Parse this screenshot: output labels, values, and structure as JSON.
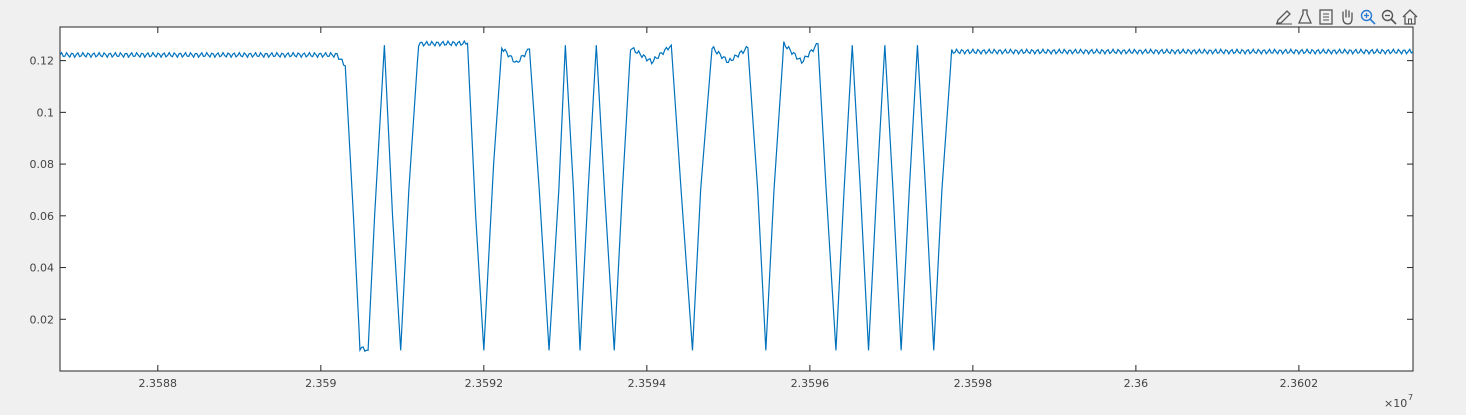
{
  "toolbar": {
    "buttons": [
      {
        "name": "edit-plot-icon"
      },
      {
        "name": "insert-legend-icon"
      },
      {
        "name": "brush-data-icon"
      },
      {
        "name": "pan-icon"
      },
      {
        "name": "zoom-in-icon"
      },
      {
        "name": "zoom-out-icon"
      },
      {
        "name": "home-icon"
      }
    ]
  },
  "chart_data": {
    "type": "line",
    "title": "",
    "xlabel": "",
    "ylabel": "",
    "xlim": [
      23586800,
      23603400
    ],
    "ylim": [
      0,
      0.133
    ],
    "x_exponent_label": "×10",
    "x_exponent_power": "7",
    "x_ticks": [
      23588000,
      23590000,
      23592000,
      23594000,
      23596000,
      23598000,
      23600000,
      23602000
    ],
    "x_tick_labels": [
      "2.3588",
      "2.359",
      "2.3592",
      "2.3594",
      "2.3596",
      "2.3598",
      "2.36",
      "2.3602"
    ],
    "y_ticks": [
      0.02,
      0.04,
      0.06,
      0.08,
      0.1,
      0.12
    ],
    "y_tick_labels": [
      "0.02",
      "0.04",
      "0.06",
      "0.08",
      "0.1",
      "0.12"
    ],
    "grid": false,
    "series_color": "#0072bd",
    "series": [
      {
        "points": [
          [
            23586800,
            0.1222
          ],
          [
            23590200,
            0.1222
          ],
          [
            23590300,
            0.118
          ],
          [
            23590400,
            0.06
          ],
          [
            23590480,
            0.009
          ],
          [
            23590580,
            0.008
          ],
          [
            23590660,
            0.06
          ],
          [
            23590780,
            0.126
          ],
          [
            23590880,
            0.06
          ],
          [
            23590980,
            0.008
          ],
          [
            23591080,
            0.07
          ],
          [
            23591200,
            0.1265
          ],
          [
            23591800,
            0.1267
          ],
          [
            23591900,
            0.06
          ],
          [
            23592000,
            0.008
          ],
          [
            23592120,
            0.08
          ],
          [
            23592220,
            0.125
          ],
          [
            23592400,
            0.119
          ],
          [
            23592560,
            0.1245
          ],
          [
            23592680,
            0.07
          ],
          [
            23592800,
            0.008
          ],
          [
            23592920,
            0.07
          ],
          [
            23593000,
            0.126
          ],
          [
            23593100,
            0.07
          ],
          [
            23593180,
            0.008
          ],
          [
            23593280,
            0.07
          ],
          [
            23593380,
            0.126
          ],
          [
            23593480,
            0.07
          ],
          [
            23593600,
            0.008
          ],
          [
            23593700,
            0.07
          ],
          [
            23593800,
            0.125
          ],
          [
            23594060,
            0.1195
          ],
          [
            23594300,
            0.126
          ],
          [
            23594420,
            0.07
          ],
          [
            23594560,
            0.008
          ],
          [
            23594660,
            0.07
          ],
          [
            23594800,
            0.125
          ],
          [
            23595000,
            0.1195
          ],
          [
            23595240,
            0.125
          ],
          [
            23595360,
            0.07
          ],
          [
            23595460,
            0.008
          ],
          [
            23595560,
            0.07
          ],
          [
            23595680,
            0.1265
          ],
          [
            23595900,
            0.1195
          ],
          [
            23596100,
            0.1265
          ],
          [
            23596200,
            0.07
          ],
          [
            23596320,
            0.008
          ],
          [
            23596420,
            0.07
          ],
          [
            23596520,
            0.126
          ],
          [
            23596620,
            0.07
          ],
          [
            23596720,
            0.008
          ],
          [
            23596820,
            0.07
          ],
          [
            23596920,
            0.126
          ],
          [
            23597020,
            0.07
          ],
          [
            23597120,
            0.008
          ],
          [
            23597220,
            0.07
          ],
          [
            23597320,
            0.126
          ],
          [
            23597420,
            0.07
          ],
          [
            23597520,
            0.008
          ],
          [
            23597620,
            0.07
          ],
          [
            23597740,
            0.1235
          ],
          [
            23603400,
            0.1235
          ]
        ]
      }
    ]
  }
}
